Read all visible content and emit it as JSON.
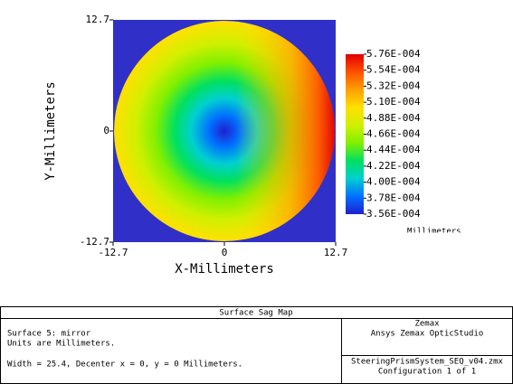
{
  "chart_data": {
    "type": "surface",
    "title": "Surface Sag Map",
    "xlabel": "X-Millimeters",
    "ylabel": "Y-Millimeters",
    "xlim": [
      -12.7,
      12.7
    ],
    "ylim": [
      -12.7,
      12.7
    ],
    "xticks": [
      -12.7,
      0,
      12.7
    ],
    "yticks": [
      -12.7,
      0,
      12.7
    ],
    "colorbar": {
      "label": "Millimeters",
      "zlim": [
        0.000356,
        0.000576
      ],
      "ticks": [
        {
          "value": 0.000576,
          "label": "5.76E-004"
        },
        {
          "value": 0.000554,
          "label": "5.54E-004"
        },
        {
          "value": 0.000532,
          "label": "5.32E-004"
        },
        {
          "value": 0.00051,
          "label": "5.10E-004"
        },
        {
          "value": 0.000488,
          "label": "4.88E-004"
        },
        {
          "value": 0.000466,
          "label": "4.66E-004"
        },
        {
          "value": 0.000444,
          "label": "4.44E-004"
        },
        {
          "value": 0.000422,
          "label": "4.22E-004"
        },
        {
          "value": 0.0004,
          "label": "4.00E-004"
        },
        {
          "value": 0.000378,
          "label": "3.78E-004"
        },
        {
          "value": 0.000356,
          "label": "3.56E-004"
        }
      ],
      "colors": [
        "#2020d0",
        "#0070ff",
        "#00d0d0",
        "#00e060",
        "#80f000",
        "#d0f000",
        "#ffe000",
        "#ffa000",
        "#ff5000",
        "#e00000"
      ]
    }
  },
  "footer": {
    "left": [
      "Surface 5: mirror",
      "Units are Millimeters.",
      "Width = 25.4, Decenter x = 0, y = 0 Millimeters."
    ],
    "right_top": [
      "Zemax",
      "Ansys Zemax OpticStudio"
    ],
    "right_bottom": [
      "SteeringPrismSystem_SEQ_v04.zmx",
      "Configuration 1 of 1"
    ]
  }
}
